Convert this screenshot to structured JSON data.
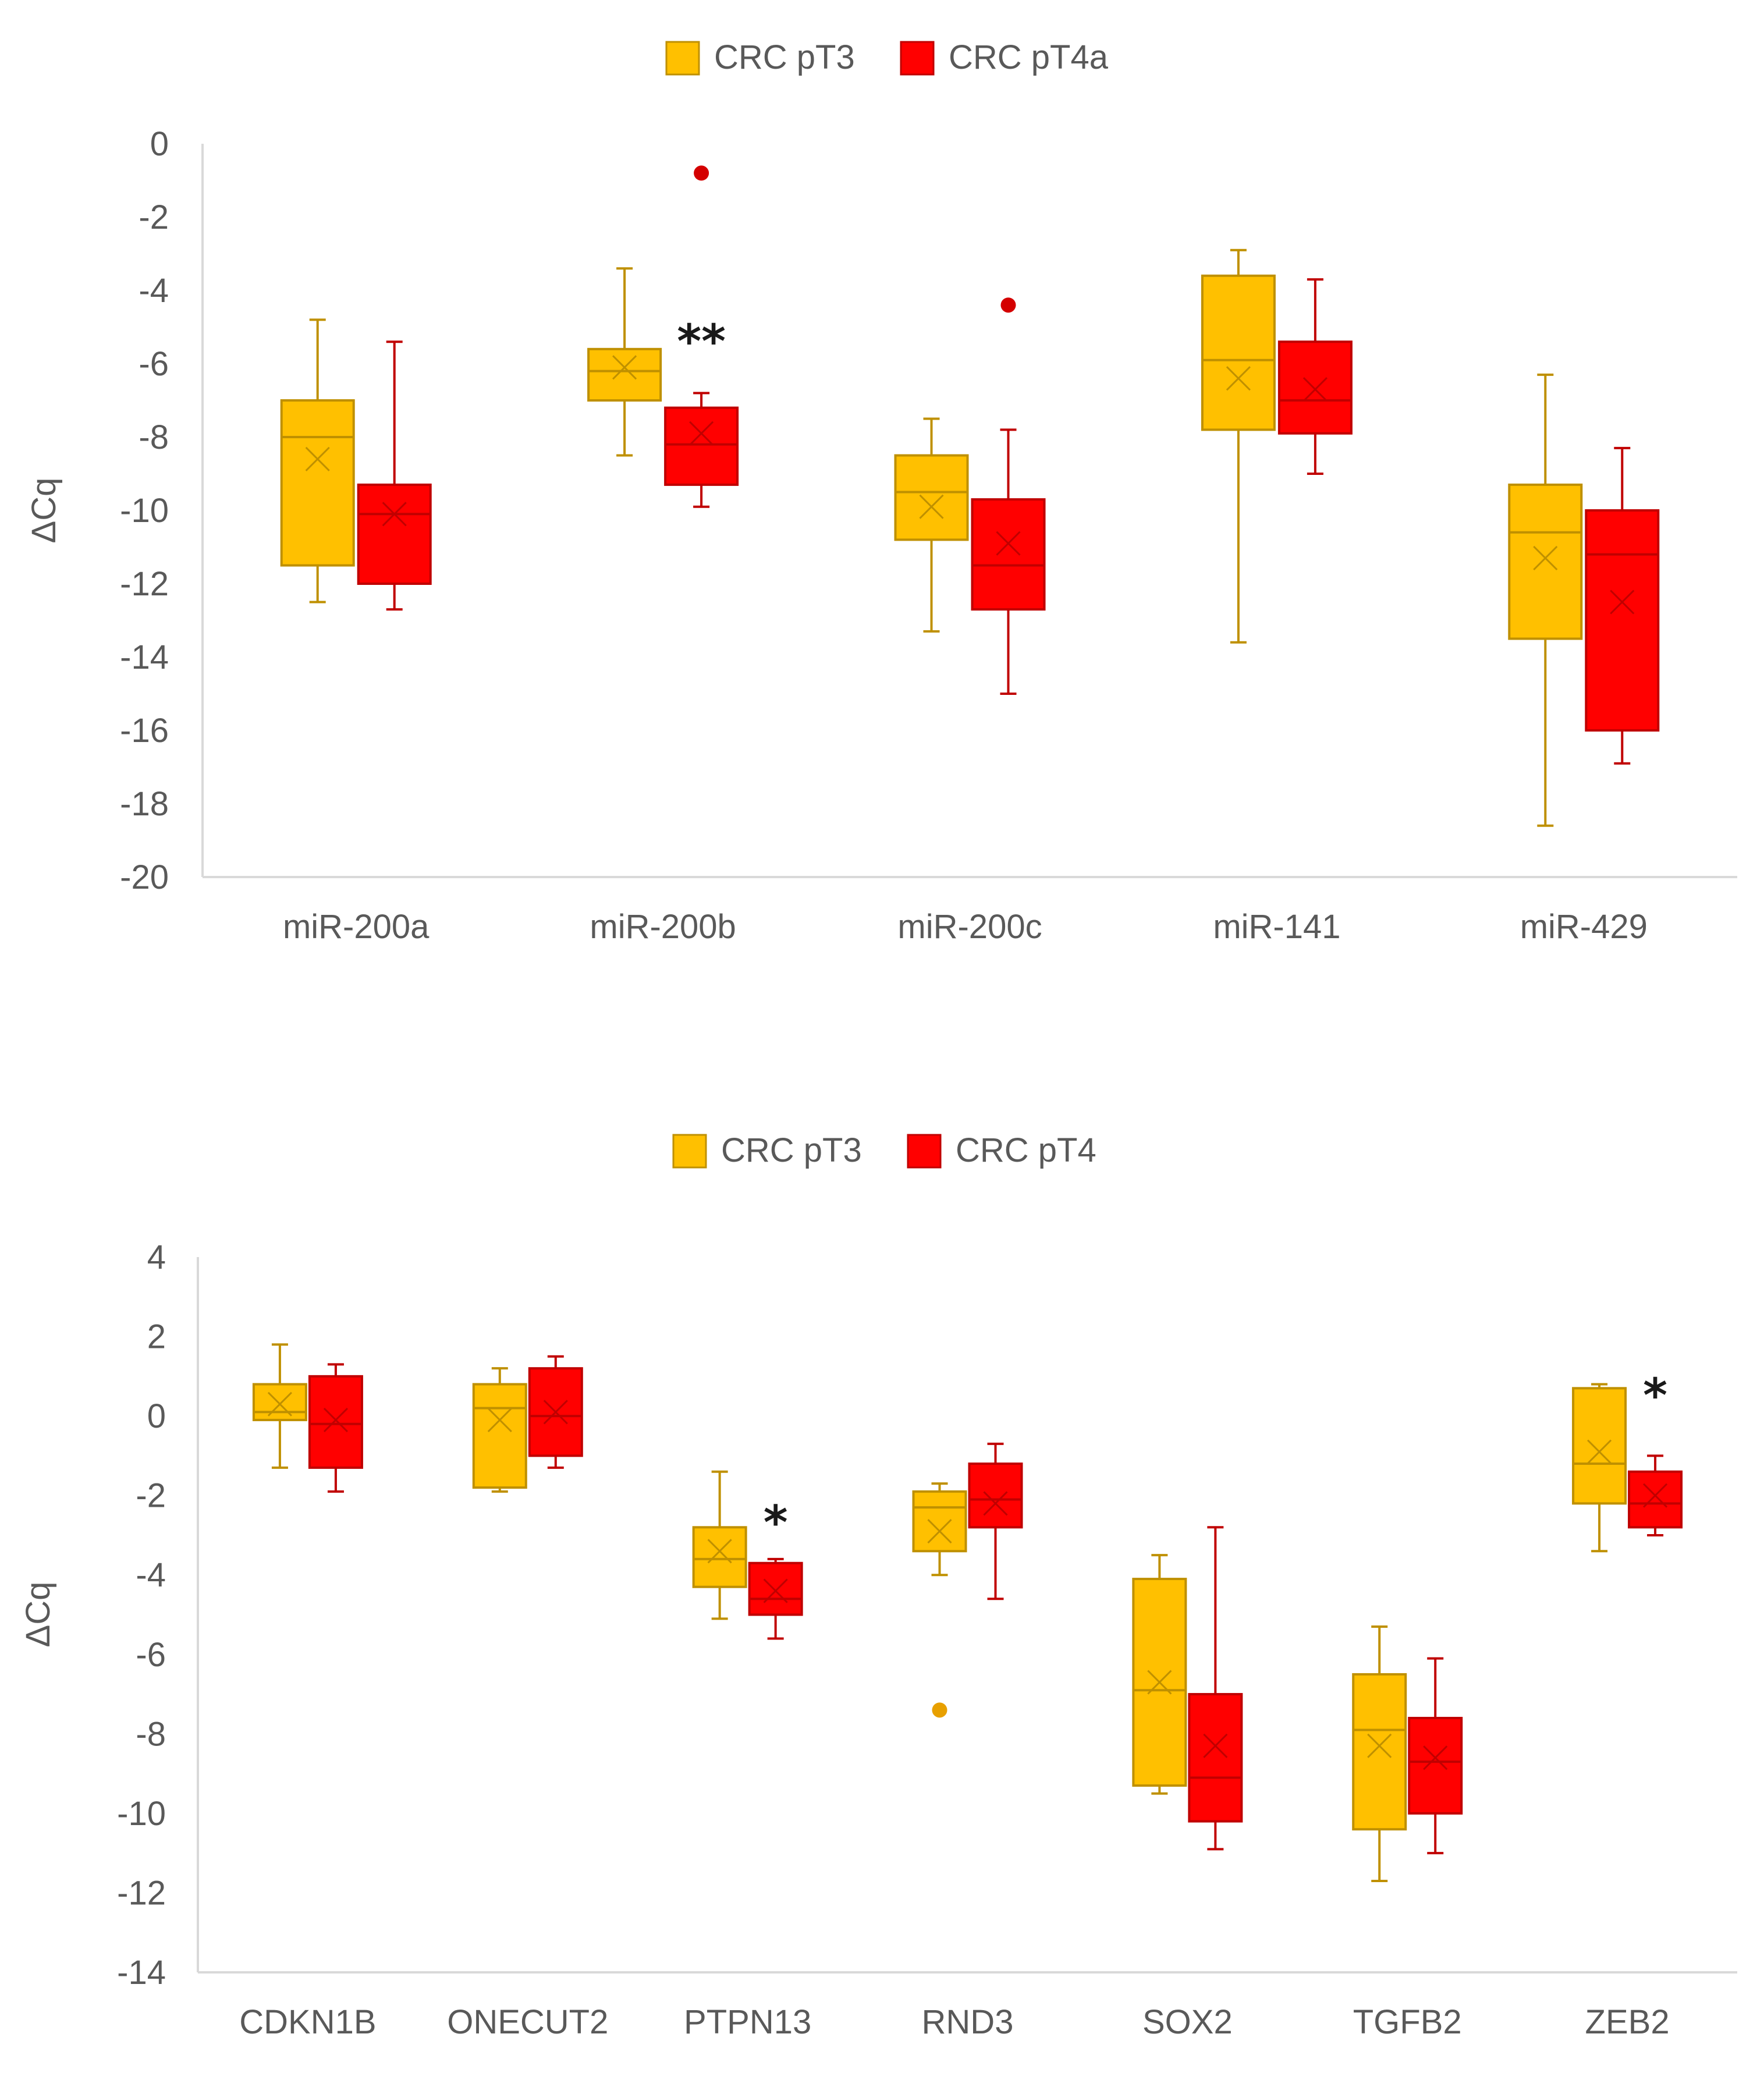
{
  "chart_data": [
    {
      "type": "box",
      "title": "",
      "xlabel": "",
      "ylabel": "ΔCq",
      "ylim": [
        -20,
        0
      ],
      "ystep": 2,
      "grid": false,
      "legend_position": "top",
      "yticks": [
        "0",
        "-2",
        "-4",
        "-6",
        "-8",
        "-10",
        "-12",
        "-14",
        "-16",
        "-18",
        "-20"
      ],
      "categories": [
        "miR-200a",
        "miR-200b",
        "miR-200c",
        "miR-141",
        "miR-429"
      ],
      "series": [
        {
          "name": "CRC pT3",
          "color": "#FFC000",
          "stroke": "#BF9000",
          "boxes": [
            {
              "min": -12.5,
              "q1": -11.5,
              "median": -8.0,
              "q3": -7.0,
              "max": -4.8,
              "mean": -8.6,
              "outliers": []
            },
            {
              "min": -8.5,
              "q1": -7.0,
              "median": -6.2,
              "q3": -5.6,
              "max": -3.4,
              "mean": -6.1,
              "outliers": []
            },
            {
              "min": -13.3,
              "q1": -10.8,
              "median": -9.5,
              "q3": -8.5,
              "max": -7.5,
              "mean": -9.9,
              "outliers": []
            },
            {
              "min": -13.6,
              "q1": -7.8,
              "median": -5.9,
              "q3": -3.6,
              "max": -2.9,
              "mean": -6.4,
              "outliers": []
            },
            {
              "min": -18.6,
              "q1": -13.5,
              "median": -10.6,
              "q3": -9.3,
              "max": -6.3,
              "mean": -11.3,
              "outliers": []
            }
          ]
        },
        {
          "name": "CRC pT4a",
          "color": "#FF0000",
          "stroke": "#C00000",
          "boxes": [
            {
              "min": -12.7,
              "q1": -12.0,
              "median": -10.1,
              "q3": -9.3,
              "max": -5.4,
              "mean": -10.1,
              "outliers": []
            },
            {
              "min": -9.9,
              "q1": -9.3,
              "median": -8.2,
              "q3": -7.2,
              "max": -6.8,
              "mean": -7.9,
              "outliers": [
                -0.8
              ]
            },
            {
              "min": -15.0,
              "q1": -12.7,
              "median": -11.5,
              "q3": -9.7,
              "max": -7.8,
              "mean": -10.9,
              "outliers": [
                -4.4
              ]
            },
            {
              "min": -9.0,
              "q1": -7.9,
              "median": -7.0,
              "q3": -5.4,
              "max": -3.7,
              "mean": -6.7,
              "outliers": []
            },
            {
              "min": -16.9,
              "q1": -16.0,
              "median": -11.2,
              "q3": -10.0,
              "max": -8.3,
              "mean": -12.5,
              "outliers": []
            }
          ]
        }
      ],
      "annotations": [
        {
          "text": "**",
          "category": "miR-200b",
          "y": -5.2
        }
      ]
    },
    {
      "type": "box",
      "title": "",
      "xlabel": "",
      "ylabel": "ΔCq",
      "ylim": [
        -14,
        4
      ],
      "ystep": 2,
      "grid": false,
      "legend_position": "top",
      "yticks": [
        "4",
        "2",
        "0",
        "-2",
        "-4",
        "-6",
        "-8",
        "-10",
        "-12",
        "-14"
      ],
      "categories": [
        "CDKN1B",
        "ONECUT2",
        "PTPN13",
        "RND3",
        "SOX2",
        "TGFB2",
        "ZEB2"
      ],
      "series": [
        {
          "name": "CRC pT3",
          "color": "#FFC000",
          "stroke": "#BF9000",
          "boxes": [
            {
              "min": -1.3,
              "q1": -0.1,
              "median": 0.1,
              "q3": 0.8,
              "max": 1.8,
              "mean": 0.3,
              "outliers": []
            },
            {
              "min": -1.9,
              "q1": -1.8,
              "median": 0.2,
              "q3": 0.8,
              "max": 1.2,
              "mean": -0.1,
              "outliers": []
            },
            {
              "min": -5.1,
              "q1": -4.3,
              "median": -3.6,
              "q3": -2.8,
              "max": -1.4,
              "mean": -3.4,
              "outliers": []
            },
            {
              "min": -4.0,
              "q1": -3.4,
              "median": -2.3,
              "q3": -1.9,
              "max": -1.7,
              "mean": -2.9,
              "outliers": [
                -7.4
              ]
            },
            {
              "min": -9.5,
              "q1": -9.3,
              "median": -6.9,
              "q3": -4.1,
              "max": -3.5,
              "mean": -6.7,
              "outliers": []
            },
            {
              "min": -11.7,
              "q1": -10.4,
              "median": -7.9,
              "q3": -6.5,
              "max": -5.3,
              "mean": -8.3,
              "outliers": []
            },
            {
              "min": -3.4,
              "q1": -2.2,
              "median": -1.2,
              "q3": 0.7,
              "max": 0.8,
              "mean": -0.9,
              "outliers": []
            }
          ]
        },
        {
          "name": "CRC pT4",
          "color": "#FF0000",
          "stroke": "#C00000",
          "boxes": [
            {
              "min": -1.9,
              "q1": -1.3,
              "median": -0.2,
              "q3": 1.0,
              "max": 1.3,
              "mean": -0.1,
              "outliers": []
            },
            {
              "min": -1.3,
              "q1": -1.0,
              "median": 0.0,
              "q3": 1.2,
              "max": 1.5,
              "mean": 0.1,
              "outliers": []
            },
            {
              "min": -5.6,
              "q1": -5.0,
              "median": -4.6,
              "q3": -3.7,
              "max": -3.6,
              "mean": -4.4,
              "outliers": []
            },
            {
              "min": -4.6,
              "q1": -2.8,
              "median": -2.1,
              "q3": -1.2,
              "max": -0.7,
              "mean": -2.2,
              "outliers": []
            },
            {
              "min": -10.9,
              "q1": -10.2,
              "median": -9.1,
              "q3": -7.0,
              "max": -2.8,
              "mean": -8.3,
              "outliers": []
            },
            {
              "min": -11.0,
              "q1": -10.0,
              "median": -8.7,
              "q3": -7.6,
              "max": -6.1,
              "mean": -8.6,
              "outliers": []
            },
            {
              "min": -3.0,
              "q1": -2.8,
              "median": -2.2,
              "q3": -1.4,
              "max": -1.0,
              "mean": -2.0,
              "outliers": []
            }
          ]
        }
      ],
      "annotations": [
        {
          "text": "*",
          "category": "PTPN13",
          "y": -2.5
        },
        {
          "text": "*",
          "category": "ZEB2",
          "y": 0.7
        }
      ]
    }
  ]
}
